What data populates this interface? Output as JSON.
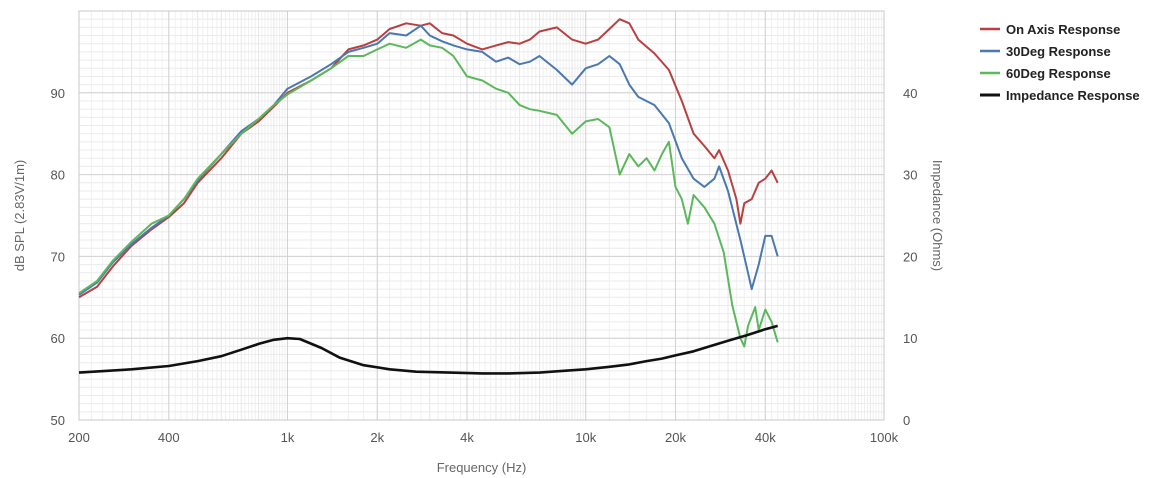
{
  "chart_data": {
    "type": "line",
    "xlabel": "Frequency (Hz)",
    "ylabel_left": "dB SPL (2.83V/1m)",
    "ylabel_right": "Impedance (Ohms)",
    "x_scale": "log",
    "xlim": [
      200,
      100000
    ],
    "ylim_left": [
      50,
      100
    ],
    "ylim_right": [
      0,
      50
    ],
    "x_ticks": [
      {
        "value": 200,
        "label": "200"
      },
      {
        "value": 400,
        "label": "400"
      },
      {
        "value": 1000,
        "label": "1k"
      },
      {
        "value": 2000,
        "label": "2k"
      },
      {
        "value": 4000,
        "label": "4k"
      },
      {
        "value": 10000,
        "label": "10k"
      },
      {
        "value": 20000,
        "label": "20k"
      },
      {
        "value": 40000,
        "label": "40k"
      },
      {
        "value": 100000,
        "label": "100k"
      }
    ],
    "y_ticks_left": [
      {
        "value": 50,
        "label": "50"
      },
      {
        "value": 60,
        "label": "60"
      },
      {
        "value": 70,
        "label": "70"
      },
      {
        "value": 80,
        "label": "80"
      },
      {
        "value": 90,
        "label": "90"
      }
    ],
    "y_ticks_right": [
      {
        "value": 0,
        "label": "0"
      },
      {
        "value": 10,
        "label": "10"
      },
      {
        "value": 20,
        "label": "20"
      },
      {
        "value": 30,
        "label": "30"
      },
      {
        "value": 40,
        "label": "40"
      }
    ],
    "grid": true,
    "legend_position": "top-right",
    "series": [
      {
        "name": "On Axis Response",
        "color": "#b94040",
        "axis": "left",
        "points": [
          [
            200,
            65
          ],
          [
            230,
            66.3
          ],
          [
            260,
            68.8
          ],
          [
            300,
            71.3
          ],
          [
            350,
            73.3
          ],
          [
            400,
            74.8
          ],
          [
            450,
            76.5
          ],
          [
            500,
            79
          ],
          [
            600,
            82
          ],
          [
            700,
            85
          ],
          [
            800,
            86.5
          ],
          [
            900,
            88.3
          ],
          [
            1000,
            90
          ],
          [
            1200,
            91.5
          ],
          [
            1400,
            93
          ],
          [
            1600,
            95.3
          ],
          [
            1800,
            95.8
          ],
          [
            2000,
            96.5
          ],
          [
            2200,
            97.8
          ],
          [
            2500,
            98.5
          ],
          [
            2800,
            98.2
          ],
          [
            3000,
            98.5
          ],
          [
            3300,
            97.3
          ],
          [
            3600,
            97
          ],
          [
            4000,
            96
          ],
          [
            4500,
            95.3
          ],
          [
            5000,
            95.8
          ],
          [
            5500,
            96.2
          ],
          [
            6000,
            96
          ],
          [
            6500,
            96.5
          ],
          [
            7000,
            97.5
          ],
          [
            8000,
            98
          ],
          [
            9000,
            96.5
          ],
          [
            10000,
            96
          ],
          [
            11000,
            96.5
          ],
          [
            12000,
            97.8
          ],
          [
            13000,
            99
          ],
          [
            14000,
            98.5
          ],
          [
            15000,
            96.5
          ],
          [
            17000,
            94.8
          ],
          [
            19000,
            92.8
          ],
          [
            21000,
            89
          ],
          [
            23000,
            85
          ],
          [
            25000,
            83.5
          ],
          [
            27000,
            82
          ],
          [
            28000,
            83
          ],
          [
            30000,
            80.5
          ],
          [
            32000,
            77
          ],
          [
            33000,
            74
          ],
          [
            34000,
            76.5
          ],
          [
            36000,
            77
          ],
          [
            38000,
            79
          ],
          [
            40000,
            79.5
          ],
          [
            42000,
            80.5
          ],
          [
            44000,
            79
          ]
        ]
      },
      {
        "name": "30Deg Response",
        "color": "#4a78b0",
        "axis": "left",
        "points": [
          [
            200,
            65.3
          ],
          [
            230,
            66.8
          ],
          [
            260,
            69.3
          ],
          [
            300,
            71.5
          ],
          [
            350,
            73.5
          ],
          [
            400,
            75
          ],
          [
            450,
            77
          ],
          [
            500,
            79.3
          ],
          [
            600,
            82.5
          ],
          [
            700,
            85.3
          ],
          [
            800,
            86.8
          ],
          [
            900,
            88.5
          ],
          [
            1000,
            90.5
          ],
          [
            1200,
            92
          ],
          [
            1400,
            93.5
          ],
          [
            1600,
            95
          ],
          [
            1800,
            95.5
          ],
          [
            2000,
            96
          ],
          [
            2200,
            97.3
          ],
          [
            2500,
            97
          ],
          [
            2800,
            98.2
          ],
          [
            3000,
            97
          ],
          [
            3300,
            96.3
          ],
          [
            3600,
            95.8
          ],
          [
            4000,
            95.3
          ],
          [
            4500,
            95
          ],
          [
            5000,
            93.8
          ],
          [
            5500,
            94.3
          ],
          [
            6000,
            93.5
          ],
          [
            6500,
            93.8
          ],
          [
            7000,
            94.5
          ],
          [
            8000,
            92.8
          ],
          [
            9000,
            91
          ],
          [
            10000,
            93
          ],
          [
            11000,
            93.5
          ],
          [
            12000,
            94.5
          ],
          [
            13000,
            93.5
          ],
          [
            14000,
            91
          ],
          [
            15000,
            89.5
          ],
          [
            17000,
            88.5
          ],
          [
            19000,
            86.3
          ],
          [
            21000,
            82
          ],
          [
            23000,
            79.5
          ],
          [
            25000,
            78.5
          ],
          [
            27000,
            79.5
          ],
          [
            28000,
            81
          ],
          [
            30000,
            78
          ],
          [
            33000,
            72
          ],
          [
            35000,
            68
          ],
          [
            36000,
            66
          ],
          [
            38000,
            69
          ],
          [
            40000,
            72.5
          ],
          [
            42000,
            72.5
          ],
          [
            44000,
            70
          ]
        ]
      },
      {
        "name": "60Deg Response",
        "color": "#5cb85c",
        "axis": "left",
        "points": [
          [
            200,
            65.5
          ],
          [
            230,
            67
          ],
          [
            260,
            69.5
          ],
          [
            300,
            71.8
          ],
          [
            350,
            74
          ],
          [
            400,
            75
          ],
          [
            450,
            77
          ],
          [
            500,
            79.5
          ],
          [
            600,
            82.5
          ],
          [
            700,
            85
          ],
          [
            800,
            86.8
          ],
          [
            900,
            88.5
          ],
          [
            1000,
            89.8
          ],
          [
            1200,
            91.5
          ],
          [
            1400,
            93
          ],
          [
            1600,
            94.5
          ],
          [
            1800,
            94.5
          ],
          [
            2000,
            95.3
          ],
          [
            2200,
            96
          ],
          [
            2500,
            95.5
          ],
          [
            2800,
            96.5
          ],
          [
            3000,
            95.8
          ],
          [
            3300,
            95.5
          ],
          [
            3600,
            94.5
          ],
          [
            4000,
            92
          ],
          [
            4500,
            91.5
          ],
          [
            5000,
            90.5
          ],
          [
            5500,
            90
          ],
          [
            6000,
            88.5
          ],
          [
            6500,
            88
          ],
          [
            7000,
            87.8
          ],
          [
            8000,
            87.3
          ],
          [
            9000,
            85
          ],
          [
            10000,
            86.5
          ],
          [
            11000,
            86.8
          ],
          [
            12000,
            85.8
          ],
          [
            13000,
            80
          ],
          [
            14000,
            82.5
          ],
          [
            15000,
            81
          ],
          [
            16000,
            82
          ],
          [
            17000,
            80.5
          ],
          [
            18000,
            82.5
          ],
          [
            19000,
            84
          ],
          [
            20000,
            78.5
          ],
          [
            21000,
            77
          ],
          [
            22000,
            74
          ],
          [
            23000,
            77.5
          ],
          [
            25000,
            76
          ],
          [
            27000,
            74
          ],
          [
            29000,
            70.5
          ],
          [
            31000,
            64
          ],
          [
            33000,
            60
          ],
          [
            34000,
            59
          ],
          [
            35000,
            61.5
          ],
          [
            37000,
            63.8
          ],
          [
            38000,
            61
          ],
          [
            40000,
            63.5
          ],
          [
            42000,
            62
          ],
          [
            44000,
            59.5
          ]
        ]
      },
      {
        "name": "Impedance Response",
        "color": "#111111",
        "axis": "right",
        "points": [
          [
            200,
            5.8
          ],
          [
            300,
            6.2
          ],
          [
            400,
            6.6
          ],
          [
            500,
            7.2
          ],
          [
            600,
            7.8
          ],
          [
            700,
            8.6
          ],
          [
            800,
            9.3
          ],
          [
            900,
            9.8
          ],
          [
            1000,
            10
          ],
          [
            1100,
            9.9
          ],
          [
            1300,
            8.8
          ],
          [
            1500,
            7.6
          ],
          [
            1800,
            6.7
          ],
          [
            2200,
            6.2
          ],
          [
            2700,
            5.9
          ],
          [
            3500,
            5.8
          ],
          [
            4500,
            5.7
          ],
          [
            5500,
            5.7
          ],
          [
            7000,
            5.8
          ],
          [
            8000,
            5.95
          ],
          [
            10000,
            6.2
          ],
          [
            12000,
            6.5
          ],
          [
            14000,
            6.8
          ],
          [
            16000,
            7.2
          ],
          [
            18000,
            7.5
          ],
          [
            20000,
            7.9
          ],
          [
            23000,
            8.4
          ],
          [
            26000,
            9
          ],
          [
            30000,
            9.7
          ],
          [
            35000,
            10.4
          ],
          [
            40000,
            11.1
          ],
          [
            44000,
            11.5
          ]
        ]
      }
    ]
  }
}
